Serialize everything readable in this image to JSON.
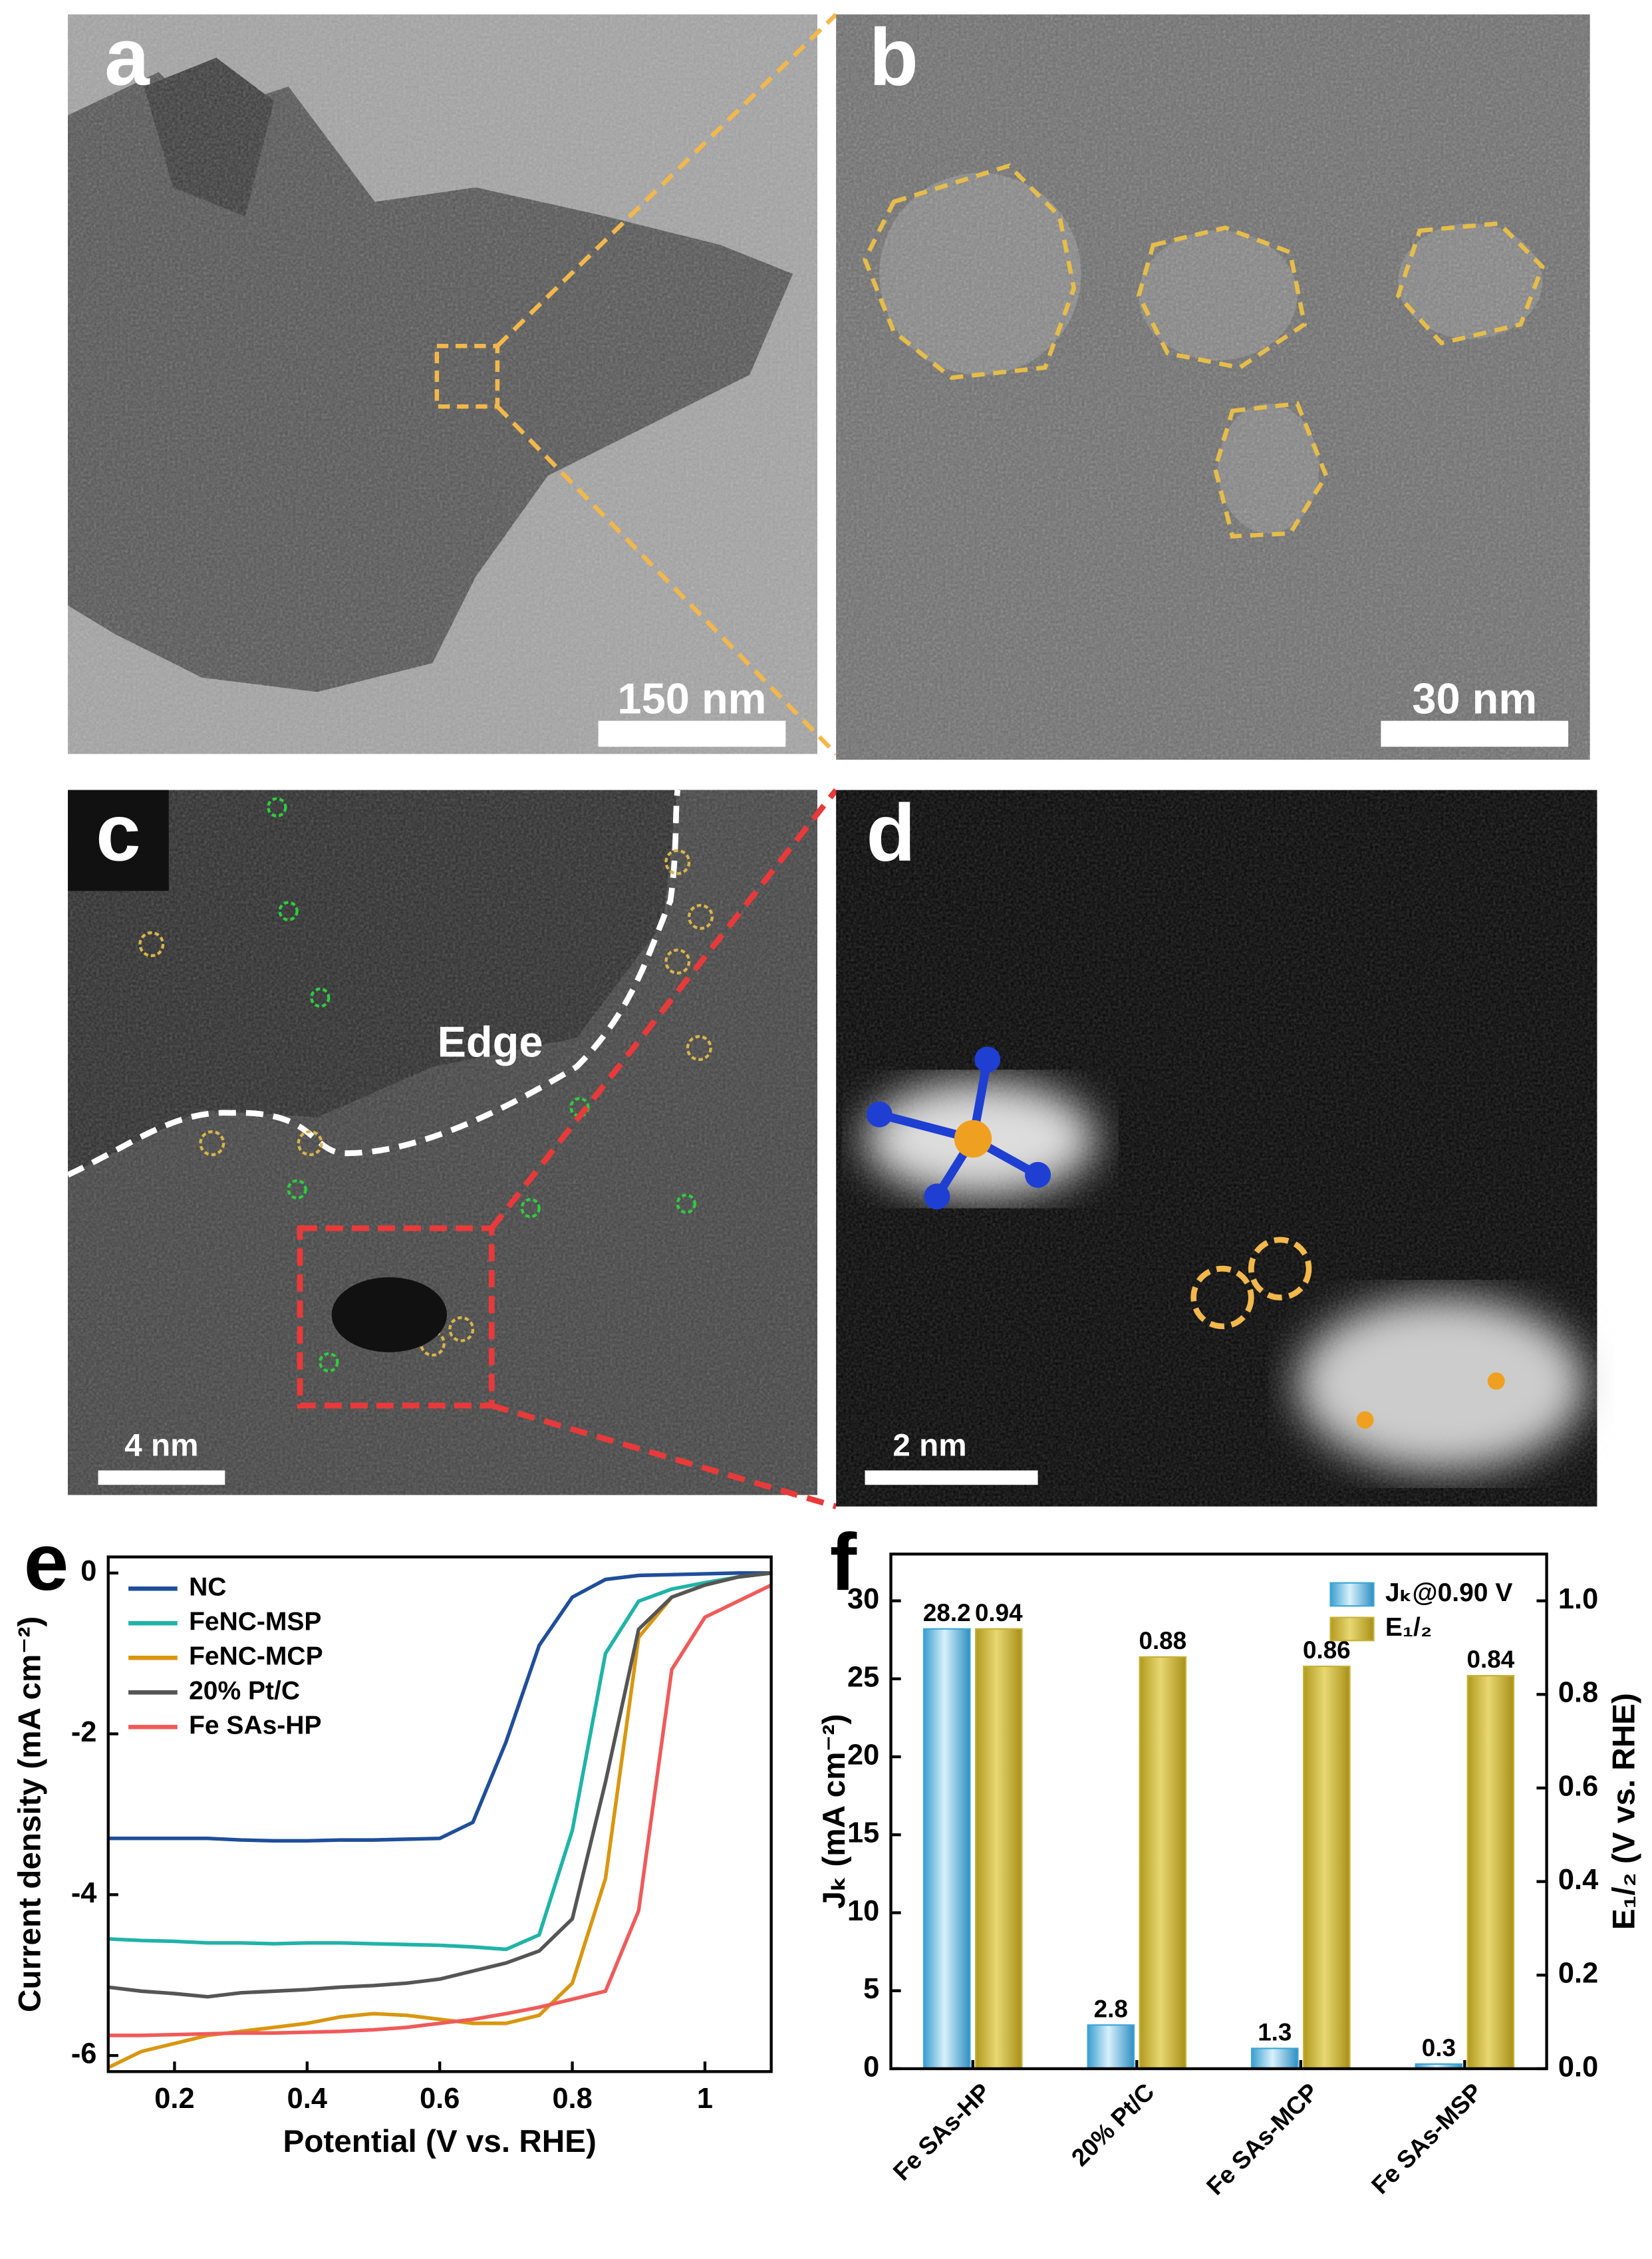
{
  "panels": [
    {
      "label": "a",
      "scale_bar": "150 nm"
    },
    {
      "label": "b",
      "scale_bar": "30 nm"
    },
    {
      "label": "c",
      "scale_bar": "4 nm",
      "annotation": "Edge"
    },
    {
      "label": "d",
      "scale_bar": "2 nm"
    },
    {
      "label": "e"
    },
    {
      "label": "f"
    }
  ],
  "chart_data": [
    {
      "type": "line",
      "x_label": "Potential (V vs. RHE)",
      "y_label": "Current density (mA cm⁻²)",
      "x": [
        0.1,
        0.15,
        0.2,
        0.25,
        0.3,
        0.35,
        0.4,
        0.45,
        0.5,
        0.55,
        0.6,
        0.65,
        0.7,
        0.75,
        0.8,
        0.85,
        0.9,
        0.95,
        1.0,
        1.05,
        1.1
      ],
      "xlim": [
        0.1,
        1.1
      ],
      "xticks": [
        0.2,
        0.4,
        0.6,
        0.8,
        1.0
      ],
      "ylim": [
        -6.2,
        0.2
      ],
      "yticks": [
        0,
        -2,
        -4,
        -6
      ],
      "legend": "upper left",
      "series": [
        {
          "name": "NC",
          "color": "#1f4e9a",
          "values": [
            -3.3,
            -3.3,
            -3.3,
            -3.3,
            -3.32,
            -3.33,
            -3.33,
            -3.32,
            -3.32,
            -3.31,
            -3.3,
            -3.1,
            -2.1,
            -0.9,
            -0.3,
            -0.08,
            -0.03,
            -0.02,
            -0.01,
            0,
            0
          ]
        },
        {
          "name": "FeNC-MSP",
          "color": "#1fb3a8",
          "values": [
            -4.55,
            -4.57,
            -4.58,
            -4.6,
            -4.6,
            -4.61,
            -4.6,
            -4.6,
            -4.61,
            -4.62,
            -4.63,
            -4.65,
            -4.68,
            -4.5,
            -3.2,
            -1.0,
            -0.35,
            -0.2,
            -0.12,
            -0.05,
            0
          ]
        },
        {
          "name": "FeNC-MCP",
          "color": "#d9960f",
          "values": [
            -6.15,
            -5.95,
            -5.85,
            -5.75,
            -5.7,
            -5.65,
            -5.6,
            -5.52,
            -5.48,
            -5.5,
            -5.55,
            -5.6,
            -5.6,
            -5.5,
            -5.1,
            -3.8,
            -0.8,
            -0.3,
            -0.15,
            -0.05,
            0
          ]
        },
        {
          "name": "20% Pt/C",
          "color": "#555555",
          "values": [
            -5.15,
            -5.2,
            -5.23,
            -5.27,
            -5.22,
            -5.2,
            -5.18,
            -5.15,
            -5.13,
            -5.1,
            -5.05,
            -4.95,
            -4.85,
            -4.7,
            -4.3,
            -2.6,
            -0.7,
            -0.3,
            -0.15,
            -0.05,
            0
          ]
        },
        {
          "name": "Fe SAs-HP",
          "color": "#f05a5a",
          "values": [
            -5.75,
            -5.75,
            -5.74,
            -5.73,
            -5.72,
            -5.72,
            -5.71,
            -5.7,
            -5.68,
            -5.65,
            -5.6,
            -5.55,
            -5.48,
            -5.4,
            -5.3,
            -5.2,
            -4.2,
            -1.2,
            -0.55,
            -0.35,
            -0.15
          ]
        }
      ]
    },
    {
      "type": "bar",
      "y_label": "Jₖ (mA cm⁻²)",
      "y2_label": "E₁/₂ (V vs. RHE)",
      "categories": [
        "Fe SAs-HP",
        "20% Pt/C",
        "Fe SAs-MCP",
        "Fe SAs-MSP"
      ],
      "ylim": [
        0,
        33
      ],
      "yticks": [
        0,
        5,
        10,
        15,
        20,
        25,
        30
      ],
      "y2lim": [
        0,
        1.1
      ],
      "y2ticks": [
        {
          "value": 0,
          "label": "0.0"
        },
        0.2,
        0.4,
        0.6,
        0.8,
        {
          "value": 1,
          "label": "1.0"
        }
      ],
      "legend": "upper right",
      "series": [
        {
          "name": "Jₖ@0.90 V",
          "color": "#3aa6d6",
          "axis": "y",
          "values": [
            28.2,
            2.8,
            1.3,
            0.3
          ]
        },
        {
          "name": "E₁/₂",
          "color": "#c9b035",
          "axis": "y2",
          "values": [
            0.94,
            0.88,
            0.86,
            0.84
          ]
        }
      ]
    }
  ]
}
